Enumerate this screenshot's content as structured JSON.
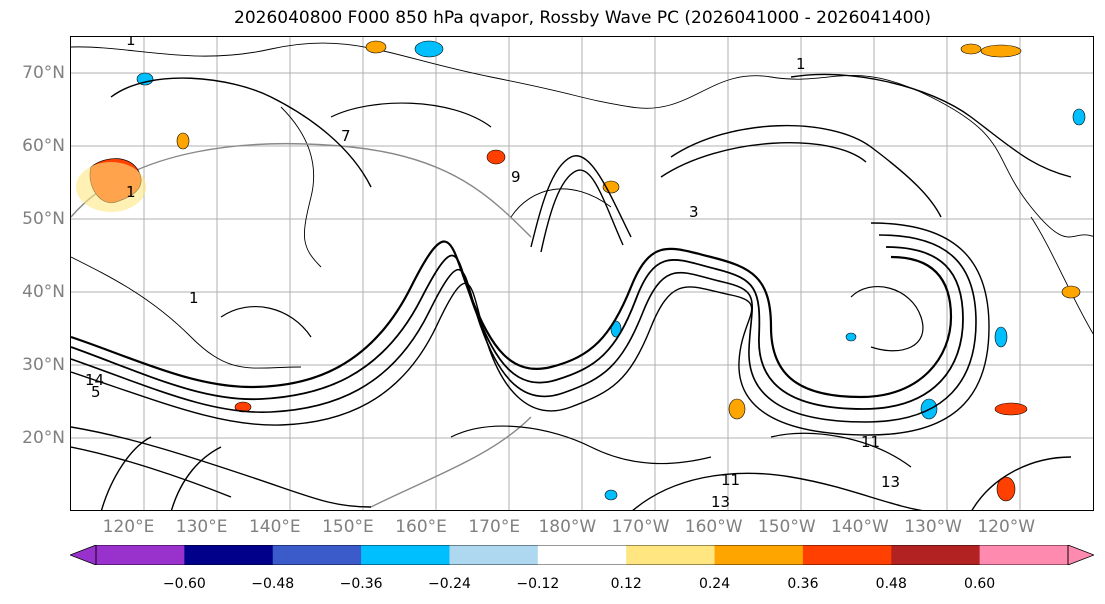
{
  "title": "2026040800 F000 850 hPa qvapor, Rossby Wave PC (2026041000 - 2026041400)",
  "lat_labels": [
    "70°N",
    "60°N",
    "50°N",
    "40°N",
    "30°N",
    "20°N"
  ],
  "lat_values": [
    70,
    60,
    50,
    40,
    30,
    20
  ],
  "lon_labels": [
    "120°E",
    "130°E",
    "140°E",
    "150°E",
    "160°E",
    "170°E",
    "180°W",
    "170°W",
    "160°W",
    "150°W",
    "140°W",
    "130°W",
    "120°W"
  ],
  "lon_values": [
    120,
    130,
    140,
    150,
    160,
    170,
    180,
    190,
    200,
    210,
    220,
    230,
    240
  ],
  "map_extent": {
    "lon_min": 112,
    "lon_max": 252,
    "lat_min": 10,
    "lat_max": 75
  },
  "contour_labels": [
    "1",
    "1",
    "3",
    "1",
    "7",
    "1",
    "5",
    "11",
    "13",
    "11",
    "13",
    "9",
    "14"
  ],
  "colorbar": {
    "ticks": [
      "−0.60",
      "−0.48",
      "−0.36",
      "−0.24",
      "−0.12",
      "0.12",
      "0.24",
      "0.36",
      "0.48",
      "0.60"
    ],
    "colors": [
      "#9932cc",
      "#00008b",
      "#3a5bc9",
      "#00bfff",
      "#add8f0",
      "#ffffff",
      "#ffe680",
      "#ffa500",
      "#ff4000",
      "#b22222",
      "#ff8ab0"
    ],
    "extend_low_color": "#9932cc",
    "extend_high_color": "#ff8ab0"
  }
}
